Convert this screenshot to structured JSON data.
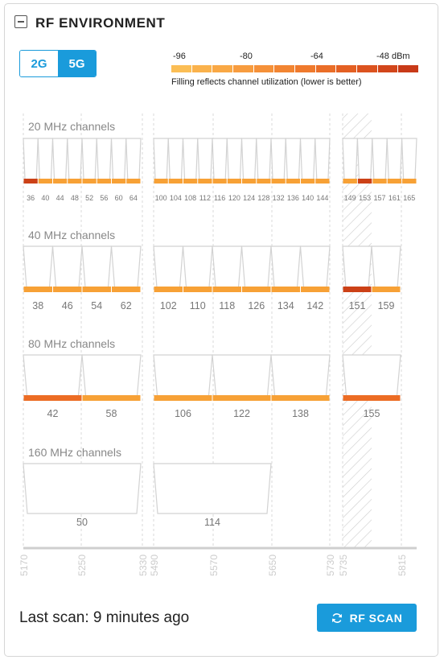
{
  "panel": {
    "title": "RF ENVIRONMENT"
  },
  "band_toggle": {
    "options": [
      "2G",
      "5G"
    ],
    "selected": "5G"
  },
  "legend": {
    "ticks": [
      "-96",
      "-80",
      "-64",
      "-48 dBm"
    ],
    "colors": [
      "#fbbe55",
      "#fab24c",
      "#f9a845",
      "#f79c3f",
      "#f59139",
      "#f28532",
      "#ef7a2d",
      "#ea6e28",
      "#e46023",
      "#dc531f",
      "#d2461b",
      "#c83a18"
    ],
    "note": "Filling reflects channel utilization (lower is better)"
  },
  "colors": {
    "accent": "#1a9bdb",
    "util_low": "#f7a136",
    "util_mid": "#ec6c24",
    "util_high": "#cc4117",
    "grid": "#d9d9d9",
    "dfs_hatch": "#cccccc"
  },
  "groups": [
    {
      "label": "20 MHz channels",
      "channels": [
        {
          "ch": "36",
          "level": "high"
        },
        {
          "ch": "40",
          "level": "low"
        },
        {
          "ch": "44",
          "level": "low"
        },
        {
          "ch": "48",
          "level": "low"
        },
        {
          "ch": "52",
          "level": "low"
        },
        {
          "ch": "56",
          "level": "low"
        },
        {
          "ch": "60",
          "level": "low"
        },
        {
          "ch": "64",
          "level": "low"
        },
        {
          "ch": "100",
          "level": "low"
        },
        {
          "ch": "104",
          "level": "low"
        },
        {
          "ch": "108",
          "level": "low"
        },
        {
          "ch": "112",
          "level": "low"
        },
        {
          "ch": "116",
          "level": "low"
        },
        {
          "ch": "120",
          "level": "low"
        },
        {
          "ch": "124",
          "level": "low"
        },
        {
          "ch": "128",
          "level": "low"
        },
        {
          "ch": "132",
          "level": "low"
        },
        {
          "ch": "136",
          "level": "low"
        },
        {
          "ch": "140",
          "level": "low"
        },
        {
          "ch": "144",
          "level": "low"
        },
        {
          "ch": "149",
          "level": "low"
        },
        {
          "ch": "153",
          "level": "high"
        },
        {
          "ch": "157",
          "level": "low"
        },
        {
          "ch": "161",
          "level": "low"
        },
        {
          "ch": "165",
          "level": "low"
        }
      ]
    },
    {
      "label": "40 MHz channels",
      "channels": [
        {
          "ch": "38",
          "level": "low"
        },
        {
          "ch": "46",
          "level": "low"
        },
        {
          "ch": "54",
          "level": "low"
        },
        {
          "ch": "62",
          "level": "low"
        },
        {
          "ch": "102",
          "level": "low"
        },
        {
          "ch": "110",
          "level": "low"
        },
        {
          "ch": "118",
          "level": "low"
        },
        {
          "ch": "126",
          "level": "low"
        },
        {
          "ch": "134",
          "level": "low"
        },
        {
          "ch": "142",
          "level": "low"
        },
        {
          "ch": "151",
          "level": "high"
        },
        {
          "ch": "159",
          "level": "low"
        }
      ]
    },
    {
      "label": "80 MHz channels",
      "channels": [
        {
          "ch": "42",
          "level": "mid"
        },
        {
          "ch": "58",
          "level": "low"
        },
        {
          "ch": "106",
          "level": "low"
        },
        {
          "ch": "122",
          "level": "low"
        },
        {
          "ch": "138",
          "level": "low"
        },
        {
          "ch": "155",
          "level": "mid"
        }
      ]
    },
    {
      "label": "160 MHz channels",
      "channels": [
        {
          "ch": "50",
          "level": "none"
        },
        {
          "ch": "114",
          "level": "none"
        }
      ]
    }
  ],
  "freq_axis": [
    "5170",
    "5250",
    "5330",
    "5490",
    "5570",
    "5650",
    "5730",
    "5735",
    "5815"
  ],
  "footer": {
    "last_scan": "Last scan: 9 minutes ago",
    "scan_button": "RF SCAN"
  }
}
